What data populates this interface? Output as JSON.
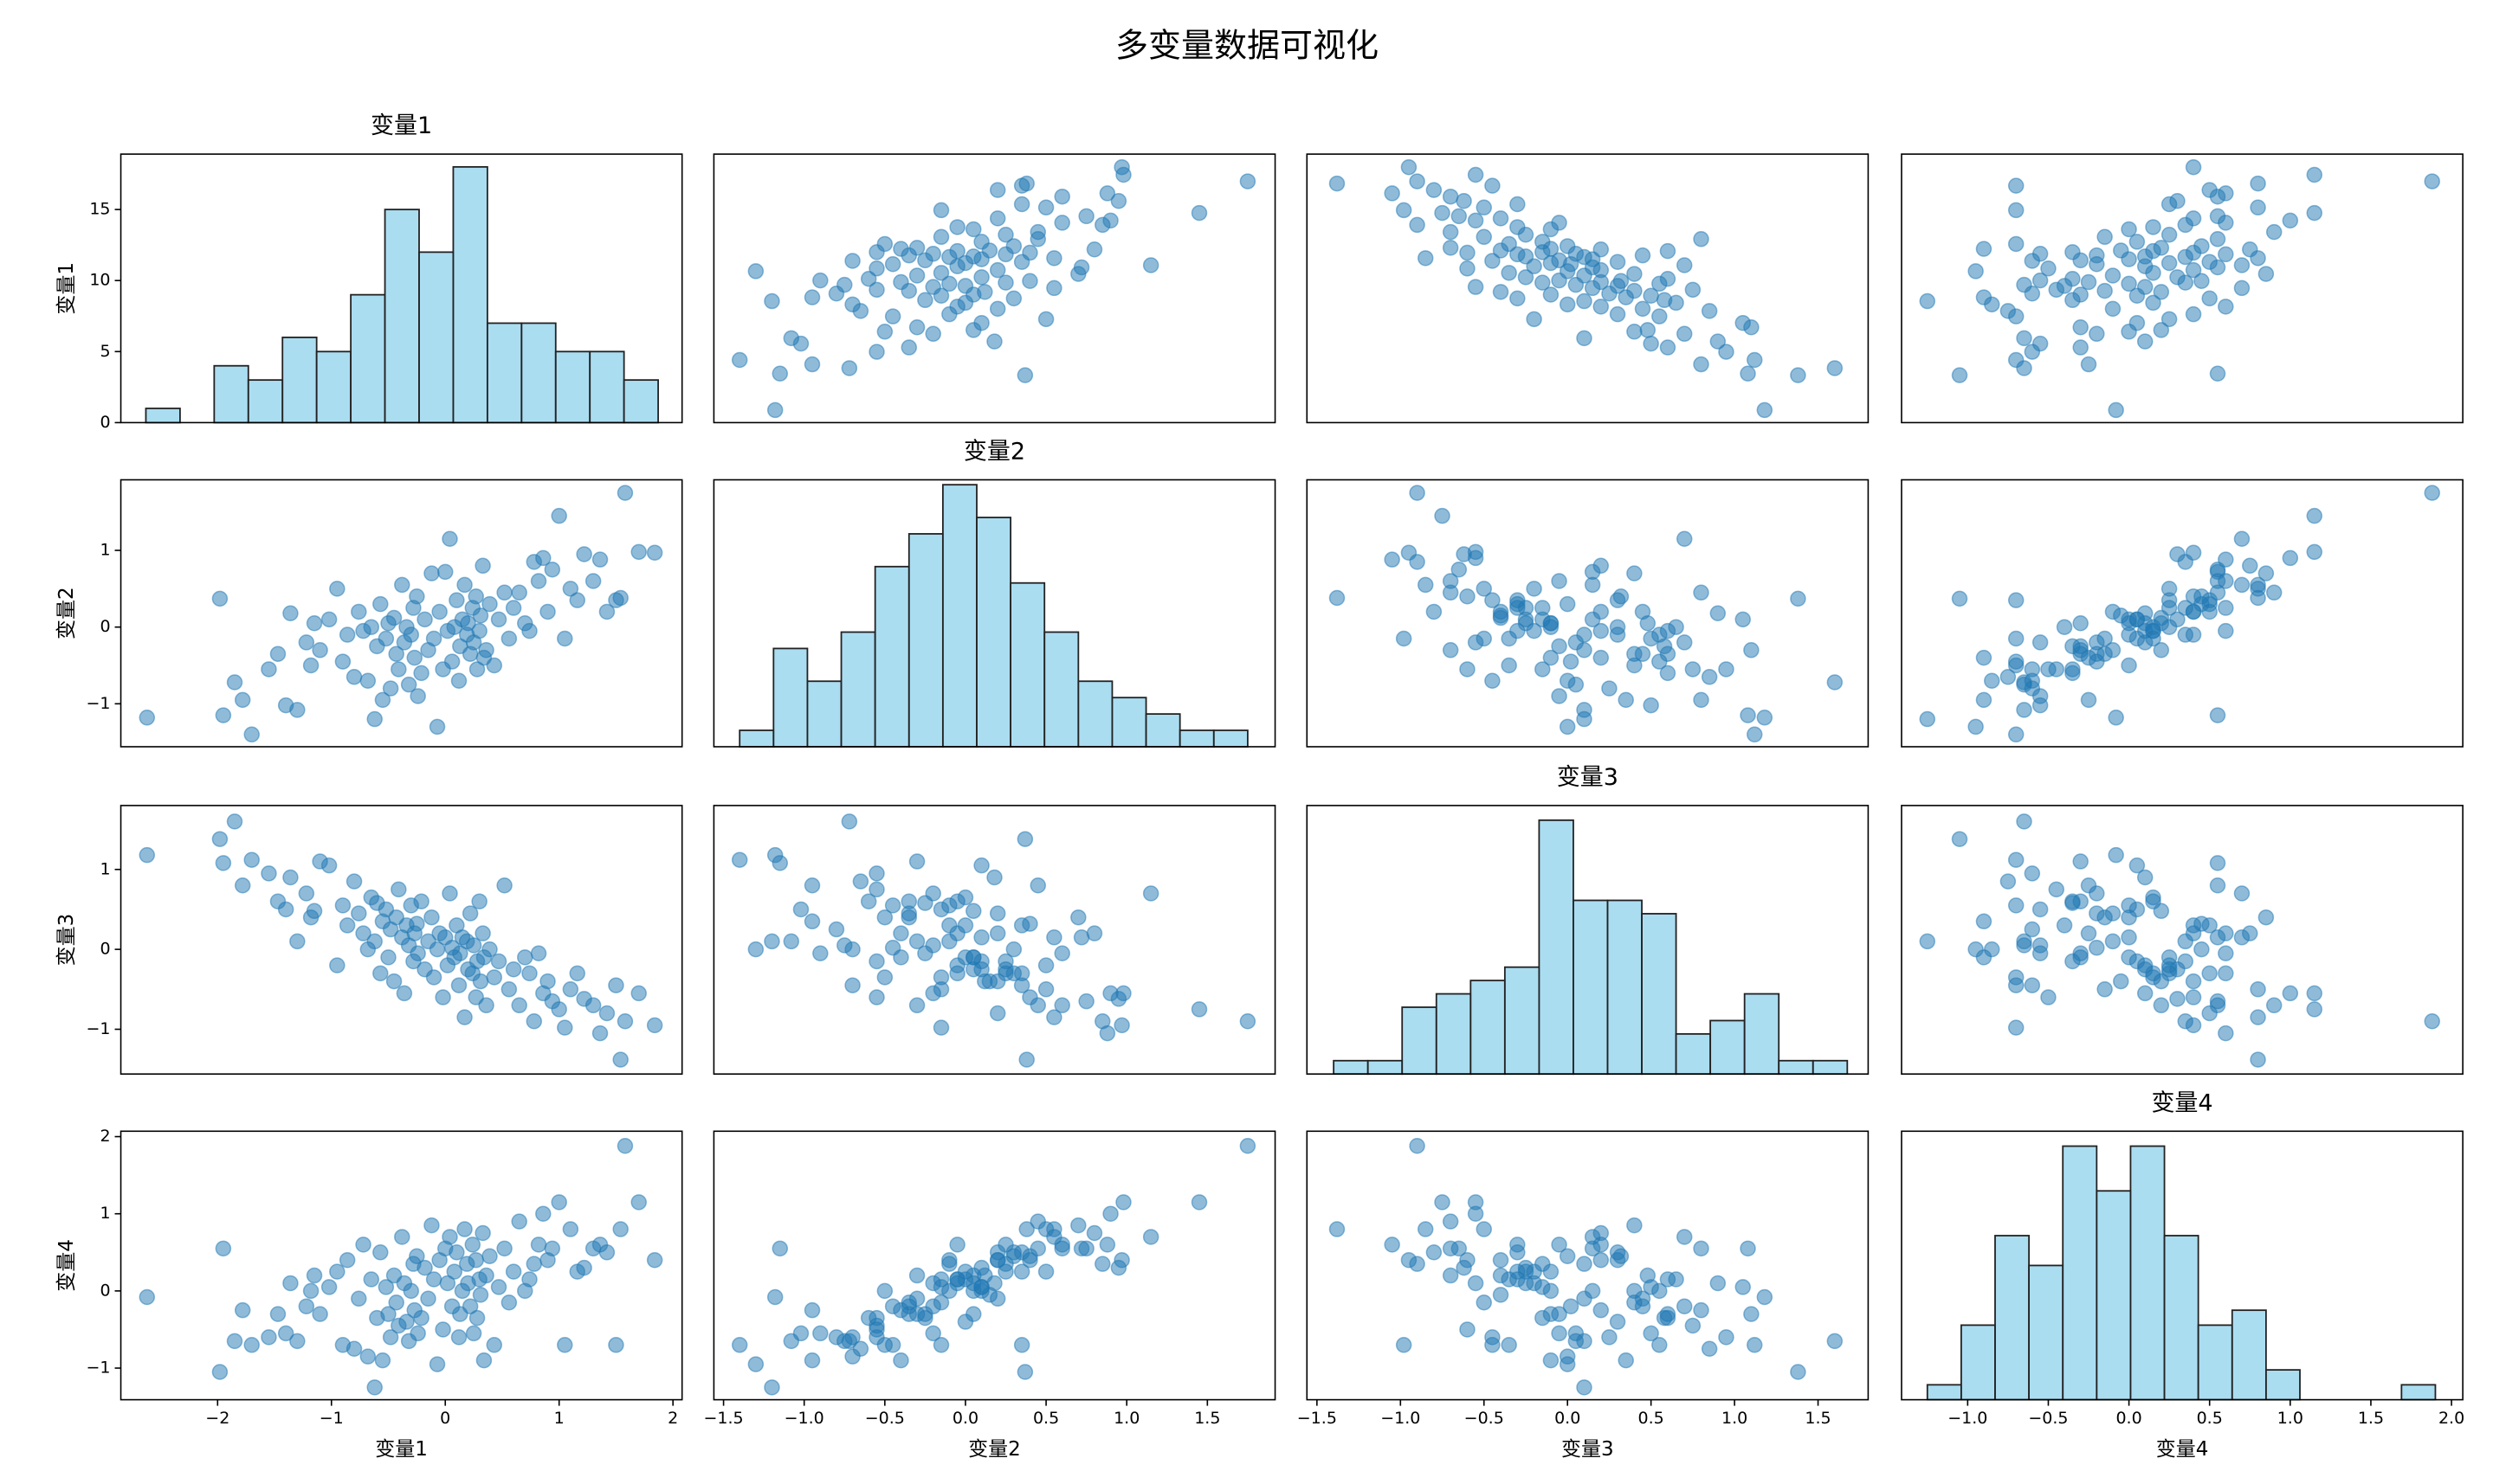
{
  "chart_data": {
    "type": "scatter_matrix",
    "title": "多变量数据可视化",
    "point_color": "#1f77b4",
    "point_alpha": 0.5,
    "hist_color": "#87ceeb",
    "hist_alpha": 0.7,
    "series": [
      {
        "name": "变量1",
        "values": [
          -2.62,
          -1.98,
          -1.95,
          -1.85,
          -1.78,
          -1.7,
          -1.55,
          -1.47,
          -1.4,
          -1.36,
          -1.3,
          -1.22,
          -1.18,
          -1.15,
          -1.1,
          -1.02,
          -0.95,
          -0.9,
          -0.86,
          -0.8,
          -0.76,
          -0.72,
          -0.68,
          -0.65,
          -0.62,
          -0.6,
          -0.57,
          -0.55,
          -0.52,
          -0.5,
          -0.48,
          -0.45,
          -0.43,
          -0.41,
          -0.38,
          -0.36,
          -0.34,
          -0.32,
          -0.3,
          -0.28,
          -0.27,
          -0.25,
          -0.24,
          -0.21,
          -0.18,
          -0.15,
          -0.12,
          -0.1,
          -0.07,
          -0.05,
          -0.02,
          0.0,
          0.02,
          0.04,
          0.06,
          0.08,
          0.1,
          0.12,
          0.13,
          0.15,
          0.17,
          0.19,
          0.2,
          0.22,
          0.24,
          0.25,
          0.27,
          0.28,
          0.3,
          0.31,
          0.33,
          0.34,
          0.36,
          0.39,
          0.43,
          0.47,
          0.52,
          0.56,
          0.6,
          0.65,
          0.7,
          0.74,
          0.78,
          0.82,
          0.86,
          0.9,
          0.94,
          1.0,
          1.05,
          1.1,
          1.16,
          1.22,
          1.3,
          1.36,
          1.42,
          1.5,
          1.54,
          1.58,
          1.7,
          1.84
        ],
        "lim": [
          -2.85,
          2.08
        ],
        "xticks": [
          {
            "value": -2,
            "label": "−2"
          },
          {
            "value": -1,
            "label": "−1"
          },
          0,
          1,
          2
        ]
      },
      {
        "name": "变量2",
        "values": [
          -1.18,
          0.37,
          -1.15,
          -0.72,
          -0.95,
          -1.4,
          -0.55,
          -0.35,
          -1.02,
          0.18,
          -1.08,
          -0.2,
          -0.5,
          0.05,
          -0.3,
          0.1,
          0.5,
          -0.45,
          -0.1,
          -0.65,
          0.2,
          -0.05,
          -0.7,
          0.0,
          -1.2,
          -0.25,
          0.3,
          -0.95,
          -0.15,
          0.05,
          -0.8,
          0.12,
          -0.35,
          -0.55,
          0.55,
          -0.2,
          0.0,
          -0.75,
          -0.1,
          0.25,
          -0.4,
          0.4,
          -0.9,
          -0.6,
          0.1,
          -0.3,
          0.7,
          -0.15,
          -1.3,
          0.2,
          -0.55,
          0.72,
          -0.05,
          1.15,
          -0.45,
          0.0,
          0.35,
          -0.7,
          -0.25,
          0.1,
          0.55,
          -0.1,
          0.05,
          -0.35,
          0.25,
          -0.2,
          0.4,
          -0.55,
          -0.05,
          0.15,
          0.8,
          -0.4,
          -0.3,
          0.3,
          -0.5,
          0.1,
          0.45,
          -0.15,
          0.25,
          0.45,
          0.05,
          -0.05,
          0.85,
          0.6,
          0.9,
          0.2,
          0.75,
          1.45,
          -0.15,
          0.5,
          0.35,
          0.95,
          0.6,
          0.88,
          0.2,
          0.35,
          0.38,
          1.75,
          0.98,
          0.97
        ],
        "lim": [
          -1.56,
          1.92
        ],
        "xticks": [
          {
            "value": -1.5,
            "label": "−1.5"
          },
          {
            "value": -1.0,
            "label": "−1.0"
          },
          {
            "value": -0.5,
            "label": "−0.5"
          },
          {
            "value": 0,
            "label": "0.0"
          },
          0.5,
          {
            "value": 1.0,
            "label": "1.0"
          },
          1.5
        ],
        "yticks": [
          {
            "value": -1,
            "label": "−1"
          },
          0,
          1
        ]
      },
      {
        "name": "变量3",
        "values": [
          1.18,
          1.38,
          1.08,
          1.6,
          0.8,
          1.12,
          0.95,
          0.6,
          0.5,
          0.9,
          0.1,
          0.7,
          0.4,
          0.48,
          1.1,
          1.05,
          -0.2,
          0.55,
          0.3,
          0.85,
          0.45,
          0.2,
          0.0,
          0.65,
          0.1,
          0.58,
          -0.3,
          0.35,
          0.5,
          -0.1,
          0.25,
          -0.4,
          0.4,
          0.75,
          0.15,
          -0.55,
          0.3,
          0.05,
          0.55,
          -0.15,
          0.2,
          0.32,
          -0.05,
          0.6,
          -0.25,
          0.1,
          0.4,
          -0.35,
          0.0,
          0.2,
          -0.6,
          0.15,
          -0.2,
          0.7,
          0.02,
          -0.1,
          0.3,
          -0.45,
          -0.05,
          0.15,
          -0.85,
          0.1,
          -0.25,
          0.45,
          -0.3,
          0.05,
          -0.6,
          -0.15,
          0.6,
          -0.4,
          0.2,
          -0.1,
          -0.7,
          0.0,
          -0.35,
          -0.15,
          0.8,
          -0.5,
          -0.25,
          -0.7,
          -0.1,
          -0.3,
          -0.9,
          -0.05,
          -0.55,
          -0.4,
          -0.65,
          -0.75,
          -0.98,
          -0.5,
          -0.3,
          -0.62,
          -0.7,
          -1.05,
          -0.8,
          -0.45,
          -1.38,
          -0.9,
          -0.55,
          -0.95
        ],
        "lim": [
          -1.56,
          1.8
        ],
        "xticks": [
          {
            "value": -1.5,
            "label": "−1.5"
          },
          {
            "value": -1.0,
            "label": "−1.0"
          },
          {
            "value": -0.5,
            "label": "−0.5"
          },
          {
            "value": 0,
            "label": "0.0"
          },
          0.5,
          {
            "value": 1.0,
            "label": "1.0"
          },
          1.5
        ],
        "yticks": [
          {
            "value": -1,
            "label": "−1"
          },
          0,
          1
        ]
      },
      {
        "name": "变量4",
        "values": [
          -0.08,
          -1.05,
          0.55,
          -0.65,
          -0.25,
          -0.7,
          -0.6,
          -0.3,
          -0.55,
          0.1,
          -0.65,
          -0.2,
          0.0,
          0.2,
          -0.3,
          0.05,
          0.25,
          -0.7,
          0.4,
          -0.75,
          -0.1,
          0.6,
          -0.85,
          0.15,
          -1.25,
          -0.35,
          0.5,
          -0.9,
          0.05,
          -0.3,
          -0.6,
          0.2,
          -0.15,
          -0.45,
          0.7,
          0.1,
          -0.4,
          -0.65,
          0.0,
          0.35,
          -0.25,
          0.45,
          -0.55,
          -0.35,
          0.3,
          -0.1,
          0.85,
          0.15,
          -0.95,
          0.4,
          -0.5,
          0.55,
          0.1,
          0.7,
          -0.2,
          0.25,
          0.5,
          -0.6,
          -0.3,
          0.0,
          0.8,
          0.35,
          0.1,
          -0.2,
          0.6,
          -0.55,
          0.4,
          -0.35,
          0.15,
          -0.05,
          0.75,
          -0.9,
          0.2,
          0.45,
          -0.7,
          0.05,
          0.55,
          -0.15,
          0.25,
          0.9,
          0.0,
          0.15,
          0.35,
          0.6,
          1.0,
          0.4,
          0.55,
          1.15,
          -0.7,
          0.8,
          0.25,
          0.3,
          0.55,
          0.6,
          0.5,
          -0.7,
          0.8,
          1.88,
          1.15,
          0.4
        ],
        "lim": [
          -1.41,
          2.07
        ],
        "xticks": [
          {
            "value": -1.0,
            "label": "−1.0"
          },
          {
            "value": -0.5,
            "label": "−0.5"
          },
          {
            "value": 0,
            "label": "0.0"
          },
          0.5,
          {
            "value": 1.0,
            "label": "1.0"
          },
          1.5,
          {
            "value": 2.0,
            "label": "2.0"
          }
        ],
        "yticks": [
          {
            "value": -1,
            "label": "−1"
          },
          0,
          1,
          2
        ]
      }
    ],
    "histograms": [
      {
        "bins": [
          -2.63,
          -2.33,
          -2.03,
          -1.73,
          -1.43,
          -1.13,
          -0.83,
          -0.53,
          -0.23,
          0.07,
          0.37,
          0.67,
          0.97,
          1.27,
          1.57,
          1.87
        ],
        "counts": [
          1,
          0,
          4,
          3,
          6,
          5,
          9,
          15,
          12,
          18,
          7,
          7,
          5,
          5,
          3
        ],
        "ylim": [
          0,
          18.9
        ],
        "yticks": [
          0,
          5,
          10,
          15
        ]
      },
      {
        "bins": [
          -1.4,
          -1.19,
          -0.98,
          -0.77,
          -0.56,
          -0.35,
          -0.14,
          0.07,
          0.28,
          0.49,
          0.7,
          0.91,
          1.12,
          1.33,
          1.54,
          1.75
        ],
        "counts": [
          1,
          6,
          4,
          7,
          11,
          13,
          16,
          14,
          10,
          7,
          4,
          3,
          2,
          1,
          1
        ],
        "ylim": [
          0,
          16.3
        ]
      },
      {
        "bins": [
          -1.4,
          -1.195,
          -0.99,
          -0.785,
          -0.58,
          -0.375,
          -0.17,
          0.035,
          0.24,
          0.445,
          0.65,
          0.855,
          1.06,
          1.265,
          1.47,
          1.675
        ],
        "counts": [
          1,
          1,
          5,
          6,
          7,
          8,
          19,
          13,
          13,
          12,
          3,
          4,
          6,
          1,
          1
        ],
        "ylim": [
          0,
          20.1
        ]
      },
      {
        "bins": [
          -1.25,
          -1.04,
          -0.83,
          -0.62,
          -0.41,
          -0.2,
          0.01,
          0.22,
          0.43,
          0.64,
          0.85,
          1.06,
          1.27,
          1.48,
          1.69,
          1.9
        ],
        "counts": [
          1,
          5,
          11,
          9,
          17,
          14,
          17,
          11,
          5,
          6,
          2,
          0,
          0,
          0,
          1
        ],
        "ylim": [
          0,
          18
        ]
      }
    ]
  }
}
